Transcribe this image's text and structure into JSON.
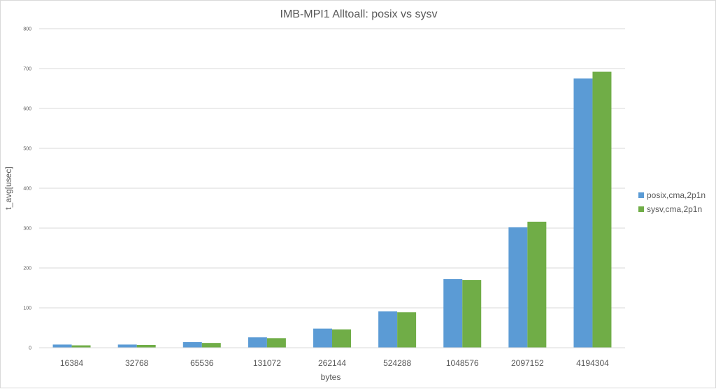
{
  "chart_data": {
    "type": "bar",
    "title": "IMB-MPI1 Alltoall: posix vs sysv",
    "xlabel": "bytes",
    "ylabel": "t_avg[usec]",
    "ylim": [
      0,
      800
    ],
    "yticks": [
      0,
      100,
      200,
      300,
      400,
      500,
      600,
      700,
      800
    ],
    "grid": true,
    "legend_position": "right",
    "categories": [
      "16384",
      "32768",
      "65536",
      "131072",
      "262144",
      "524288",
      "1048576",
      "2097152",
      "4194304"
    ],
    "series": [
      {
        "name": "posix,cma,2p1n",
        "color": "#5b9bd5",
        "values": [
          8,
          8,
          14,
          26,
          48,
          91,
          172,
          302,
          675
        ]
      },
      {
        "name": "sysv,cma,2p1n",
        "color": "#70ad47",
        "values": [
          6,
          7,
          12,
          24,
          46,
          89,
          170,
          316,
          692
        ]
      }
    ]
  }
}
